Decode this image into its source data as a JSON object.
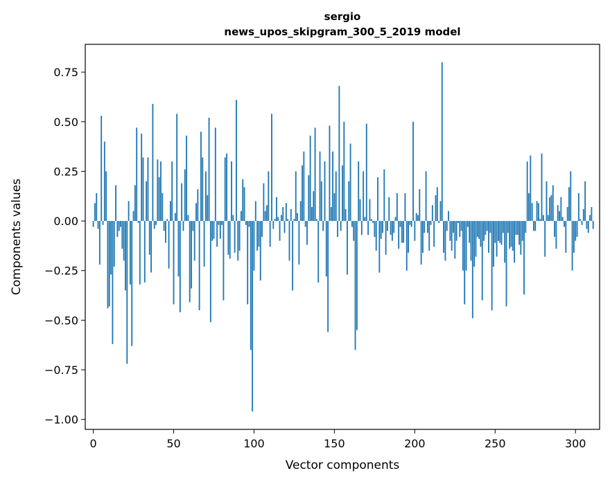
{
  "chart_data": {
    "type": "bar",
    "title": "sergio",
    "subtitle": "news_upos_skipgram_300_5_2019 model",
    "xlabel": "Vector components",
    "ylabel": "Components values",
    "xlim": [
      -5,
      315
    ],
    "ylim": [
      -1.05,
      0.89
    ],
    "xticks": [
      0,
      50,
      100,
      150,
      200,
      250,
      300
    ],
    "xtick_labels": [
      "0",
      "50",
      "100",
      "150",
      "200",
      "250",
      "300"
    ],
    "yticks": [
      0.75,
      0.5,
      0.25,
      0.0,
      -0.25,
      -0.5,
      -0.75,
      -1.0
    ],
    "ytick_labels": [
      "0.75",
      "0.50",
      "0.25",
      "0.00",
      "−0.25",
      "−0.50",
      "−0.75",
      "−1.00"
    ],
    "grid": false,
    "legend": "none",
    "bar_color": "#1f77b4",
    "series": [
      {
        "values": [
          -0.03,
          0.09,
          0.14,
          -0.04,
          -0.22,
          0.53,
          -0.02,
          0.4,
          0.25,
          -0.44,
          -0.43,
          -0.27,
          -0.62,
          -0.23,
          0.18,
          -0.08,
          -0.05,
          -0.03,
          -0.14,
          -0.2,
          -0.35,
          -0.72,
          0.1,
          -0.32,
          -0.63,
          0.05,
          0.18,
          0.47,
          -0.01,
          -0.32,
          0.44,
          0.32,
          -0.31,
          0.2,
          0.32,
          -0.17,
          -0.26,
          0.59,
          -0.04,
          -0.02,
          0.31,
          0.22,
          0.3,
          0.14,
          -0.05,
          -0.11,
          0.01,
          -0.24,
          0.1,
          0.3,
          -0.42,
          0.04,
          0.54,
          -0.28,
          -0.46,
          0.19,
          -0.05,
          0.26,
          0.43,
          0.03,
          -0.41,
          -0.34,
          -0.05,
          -0.2,
          0.09,
          0.16,
          -0.45,
          0.45,
          0.32,
          -0.23,
          0.25,
          0.13,
          0.52,
          -0.51,
          -0.1,
          -0.09,
          0.47,
          -0.13,
          -0.02,
          -0.09,
          -0.02,
          -0.4,
          0.32,
          0.34,
          -0.17,
          -0.19,
          0.3,
          0.03,
          -0.16,
          0.61,
          -0.2,
          -0.15,
          0.05,
          0.21,
          0.17,
          -0.02,
          -0.42,
          -0.03,
          -0.65,
          -0.96,
          -0.25,
          0.1,
          -0.15,
          -0.13,
          -0.3,
          -0.08,
          0.19,
          0.05,
          0.08,
          0.25,
          -0.13,
          0.54,
          -0.04,
          0.01,
          0.12,
          0.02,
          -0.1,
          0.03,
          0.07,
          -0.06,
          0.09,
          0.01,
          -0.2,
          0.06,
          -0.35,
          0.01,
          0.25,
          0.04,
          -0.22,
          0.1,
          0.28,
          0.35,
          -0.03,
          -0.12,
          0.23,
          0.43,
          0.07,
          0.15,
          0.47,
          0.01,
          -0.31,
          0.35,
          0.2,
          -0.05,
          0.3,
          -0.28,
          -0.56,
          0.48,
          0.07,
          0.35,
          0.14,
          0.25,
          -0.08,
          0.68,
          -0.05,
          0.28,
          0.5,
          0.06,
          -0.27,
          0.2,
          0.39,
          -0.03,
          -0.1,
          -0.65,
          -0.55,
          0.3,
          0.11,
          -0.07,
          0.25,
          0.02,
          0.49,
          -0.07,
          0.11,
          0.01,
          -0.01,
          -0.08,
          -0.15,
          0.22,
          -0.26,
          -0.09,
          -0.06,
          0.26,
          -0.17,
          -0.05,
          0.12,
          -0.07,
          -0.1,
          -0.06,
          0.02,
          0.14,
          -0.14,
          -0.03,
          -0.11,
          -0.11,
          0.14,
          -0.25,
          -0.16,
          -0.02,
          -0.03,
          0.5,
          -0.1,
          0.04,
          0.03,
          0.16,
          -0.22,
          -0.16,
          -0.06,
          0.25,
          -0.06,
          -0.15,
          -0.02,
          0.08,
          -0.13,
          0.13,
          0.17,
          -0.01,
          0.1,
          0.8,
          -0.16,
          -0.2,
          -0.05,
          0.05,
          -0.1,
          -0.15,
          -0.06,
          -0.19,
          -0.1,
          -0.01,
          -0.08,
          -0.05,
          -0.25,
          -0.42,
          -0.25,
          -0.03,
          -0.11,
          -0.2,
          -0.49,
          -0.23,
          -0.18,
          -0.08,
          -0.09,
          -0.13,
          -0.4,
          -0.1,
          -0.07,
          -0.05,
          -0.16,
          -0.06,
          -0.45,
          -0.23,
          -0.11,
          -0.18,
          -0.1,
          -0.11,
          -0.12,
          -0.06,
          -0.21,
          -0.43,
          -0.06,
          -0.14,
          -0.13,
          -0.15,
          -0.21,
          -0.07,
          -0.07,
          -0.12,
          -0.17,
          -0.1,
          -0.37,
          -0.06,
          0.3,
          0.14,
          0.33,
          0.09,
          -0.05,
          -0.05,
          0.1,
          0.09,
          0.01,
          0.34,
          0.03,
          -0.18,
          0.2,
          0.03,
          0.12,
          0.13,
          0.18,
          -0.08,
          -0.14,
          0.08,
          0.05,
          0.12,
          0.02,
          -0.03,
          -0.16,
          0.07,
          0.17,
          0.25,
          -0.25,
          -0.16,
          -0.1,
          -0.08,
          0.14,
          0.01,
          -0.02,
          0.06,
          0.2,
          -0.04,
          -0.06,
          0.03,
          0.07,
          -0.04
        ]
      }
    ]
  }
}
